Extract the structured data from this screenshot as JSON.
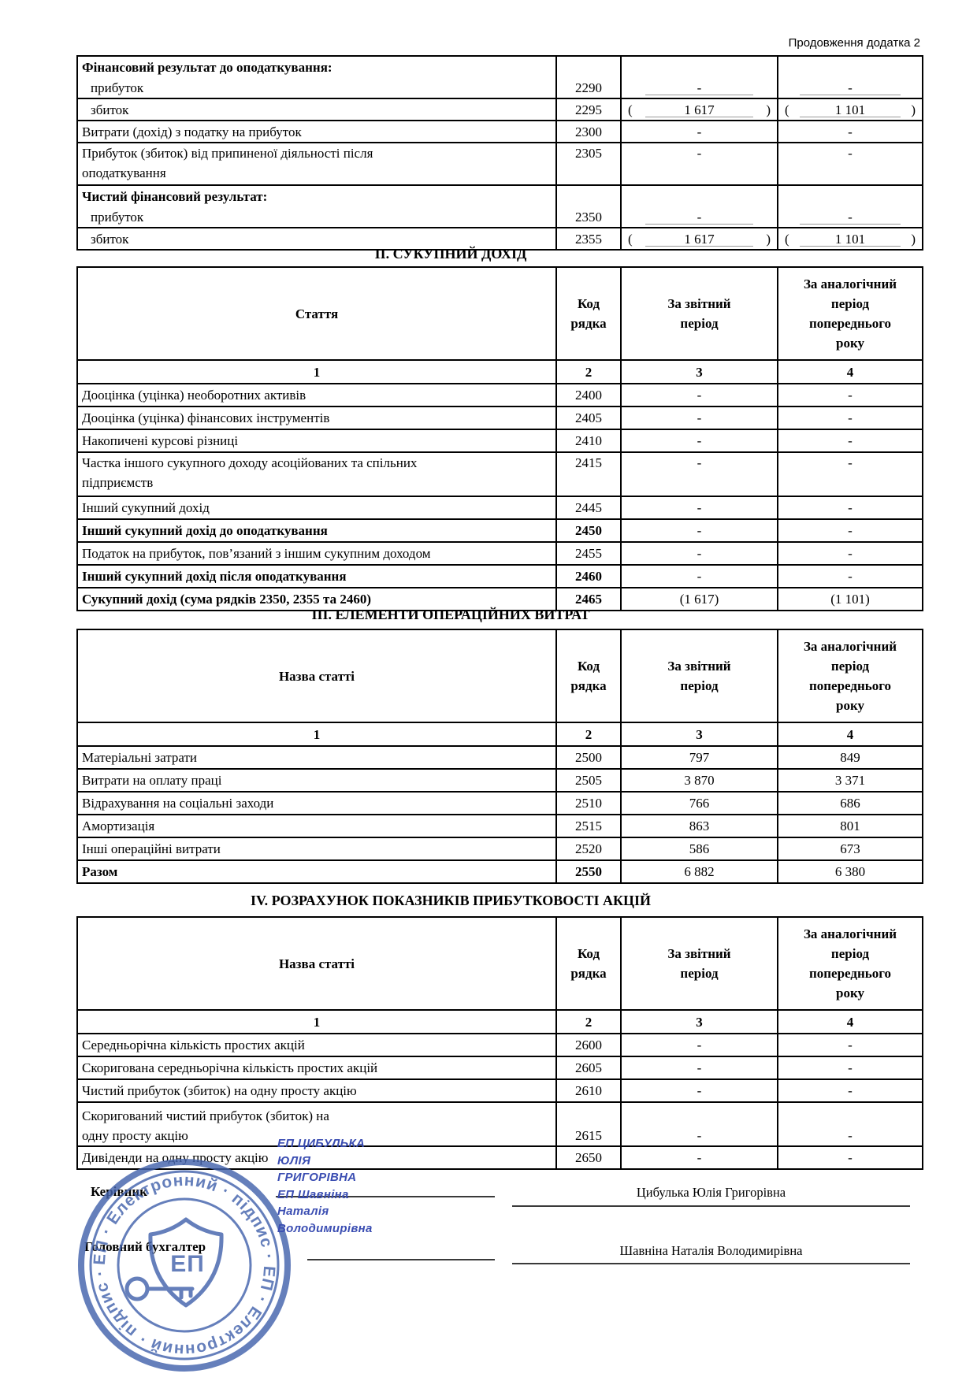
{
  "page": {
    "continuation_note": "Продовження додатка 2"
  },
  "stamp": {
    "ring_text": "ЕП · Електронний · підпис · ЕП · Електронний · підпис ·",
    "shield_label": "ЕП",
    "color": "#4463ad"
  },
  "table_financial_result": {
    "rows": [
      {
        "label": "Фінансовий результат до оподаткування:",
        "bold": true,
        "nb": true,
        "code": "",
        "v1": "",
        "v2": ""
      },
      {
        "label": "прибуток",
        "indent": true,
        "code": "2290",
        "v1": "-",
        "v2": "-",
        "underline": true
      },
      {
        "label": "збиток",
        "indent": true,
        "code": "2295",
        "v1": "1 617",
        "v2": "1 101",
        "paren": true,
        "underline": true
      },
      {
        "label": "Витрати (дохід) з податку на прибуток",
        "code": "2300",
        "v1": "-",
        "v2": "-"
      },
      {
        "label": "Прибуток (збиток) від  припиненої діяльності після",
        "label2": "оподаткування",
        "code": "2305",
        "v1": "-",
        "v2": "-",
        "valign": "top",
        "tall": true
      },
      {
        "label": "Чистий фінансовий результат:",
        "bold": true,
        "nb": true,
        "code": "",
        "v1": "",
        "v2": ""
      },
      {
        "label": "прибуток",
        "indent": true,
        "code": "2350",
        "v1": "-",
        "v2": "-",
        "underline": true
      },
      {
        "label": "збиток",
        "indent": true,
        "code": "2355",
        "v1": "1 617",
        "v2": "1 101",
        "paren": true,
        "underline": true
      }
    ]
  },
  "section2": {
    "title": "ІІ. СУКУПНИЙ ДОХІД",
    "headers": {
      "article": "Стаття",
      "code": "Код\nрядка",
      "current": "За звітний\nперіод",
      "previous": "За аналогічний\nперіод\nпопереднього\nроку"
    },
    "col_numbers": [
      "1",
      "2",
      "3",
      "4"
    ],
    "rows": [
      {
        "label": "Дооцінка (уцінка) необоротних активів",
        "code": "2400",
        "v1": "-",
        "v2": "-"
      },
      {
        "label": "Дооцінка (уцінка) фінансових інструментів",
        "code": "2405",
        "v1": "-",
        "v2": "-"
      },
      {
        "label": "Накопичені курсові різниці",
        "code": "2410",
        "v1": "-",
        "v2": "-"
      },
      {
        "label": "Частка іншого сукупного доходу асоційованих та спільних",
        "label2": "підприємств",
        "code": "2415",
        "v1": "-",
        "v2": "-",
        "valign": "top",
        "tall": true
      },
      {
        "label": "Інший сукупний дохід",
        "code": "2445",
        "v1": "-",
        "v2": "-"
      },
      {
        "label": "Інший сукупний дохід до оподаткування",
        "code": "2450",
        "v1": "-",
        "v2": "-",
        "bold": true
      },
      {
        "label": "Податок на прибуток, пов’язаний з іншим сукупним доходом",
        "code": "2455",
        "v1": "-",
        "v2": "-"
      },
      {
        "label": "Інший сукупний дохід після оподаткування",
        "code": "2460",
        "v1": "-",
        "v2": "-",
        "bold": true
      },
      {
        "label": "Сукупний дохід (сума рядків 2350, 2355 та 2460)",
        "code": "2465",
        "v1": "(1 617)",
        "v2": "(1 101)",
        "bold": true
      }
    ]
  },
  "section3": {
    "title": "ІІІ. ЕЛЕМЕНТИ ОПЕРАЦІЙНИХ ВИТРАТ",
    "headers": {
      "article": "Назва статті",
      "code": "Код\nрядка",
      "current": "За звітний\nперіод",
      "previous": "За аналогічний\nперіод\nпопереднього\nроку"
    },
    "col_numbers": [
      "1",
      "2",
      "3",
      "4"
    ],
    "rows": [
      {
        "label": "Матеріальні затрати",
        "code": "2500",
        "v1": "797",
        "v2": "849"
      },
      {
        "label": "Витрати на оплату праці",
        "code": "2505",
        "v1": "3 870",
        "v2": "3 371"
      },
      {
        "label": "Відрахування на соціальні заходи",
        "code": "2510",
        "v1": "766",
        "v2": "686"
      },
      {
        "label": "Амортизація",
        "code": "2515",
        "v1": "863",
        "v2": "801"
      },
      {
        "label": "Інші операційні витрати",
        "code": "2520",
        "v1": "586",
        "v2": "673"
      },
      {
        "label": "Разом",
        "code": "2550",
        "v1": "6 882",
        "v2": "6 380",
        "bold": true
      }
    ]
  },
  "section4": {
    "title": "IV.  РОЗРАХУНОК ПОКАЗНИКІВ ПРИБУТКОВОСТІ АКЦІЙ",
    "headers": {
      "article": "Назва статті",
      "code": "Код\nрядка",
      "current": "За звітний\nперіод",
      "previous": "За аналогічний\nперіод\nпопереднього\nроку"
    },
    "col_numbers": [
      "1",
      "2",
      "3",
      "4"
    ],
    "rows": [
      {
        "label": "Середньорічна кількість простих акцій",
        "code": "2600",
        "v1": "-",
        "v2": "-"
      },
      {
        "label": "Скоригована середньорічна кількість простих акцій",
        "code": "2605",
        "v1": "-",
        "v2": "-"
      },
      {
        "label": "Чистий прибуток (збиток) на одну просту акцію",
        "code": "2610",
        "v1": "-",
        "v2": "-"
      },
      {
        "label": "Скоригований чистий прибуток (збиток)  на",
        "label2": "одну просту акцію",
        "code": "2615",
        "v1": "-",
        "v2": "-",
        "valign": "bottom",
        "tall": true
      },
      {
        "label": "Дивіденди на одну просту акцію",
        "code": "2650",
        "v1": "-",
        "v2": "-"
      }
    ]
  },
  "signatures": {
    "director_label": "Керівник",
    "accountant_label": "Головний бухгалтер",
    "director_name": "Цибулька Юлія Григорівна",
    "accountant_name": "Шавніна Наталія Володимирівна",
    "ep_lines": [
      "ЕП ЦИБУЛЬКА",
      "ЮЛІЯ",
      "ГРИГОРІВНА",
      "ЕП Шавніна",
      "Наталія",
      "Володимирівна"
    ]
  }
}
